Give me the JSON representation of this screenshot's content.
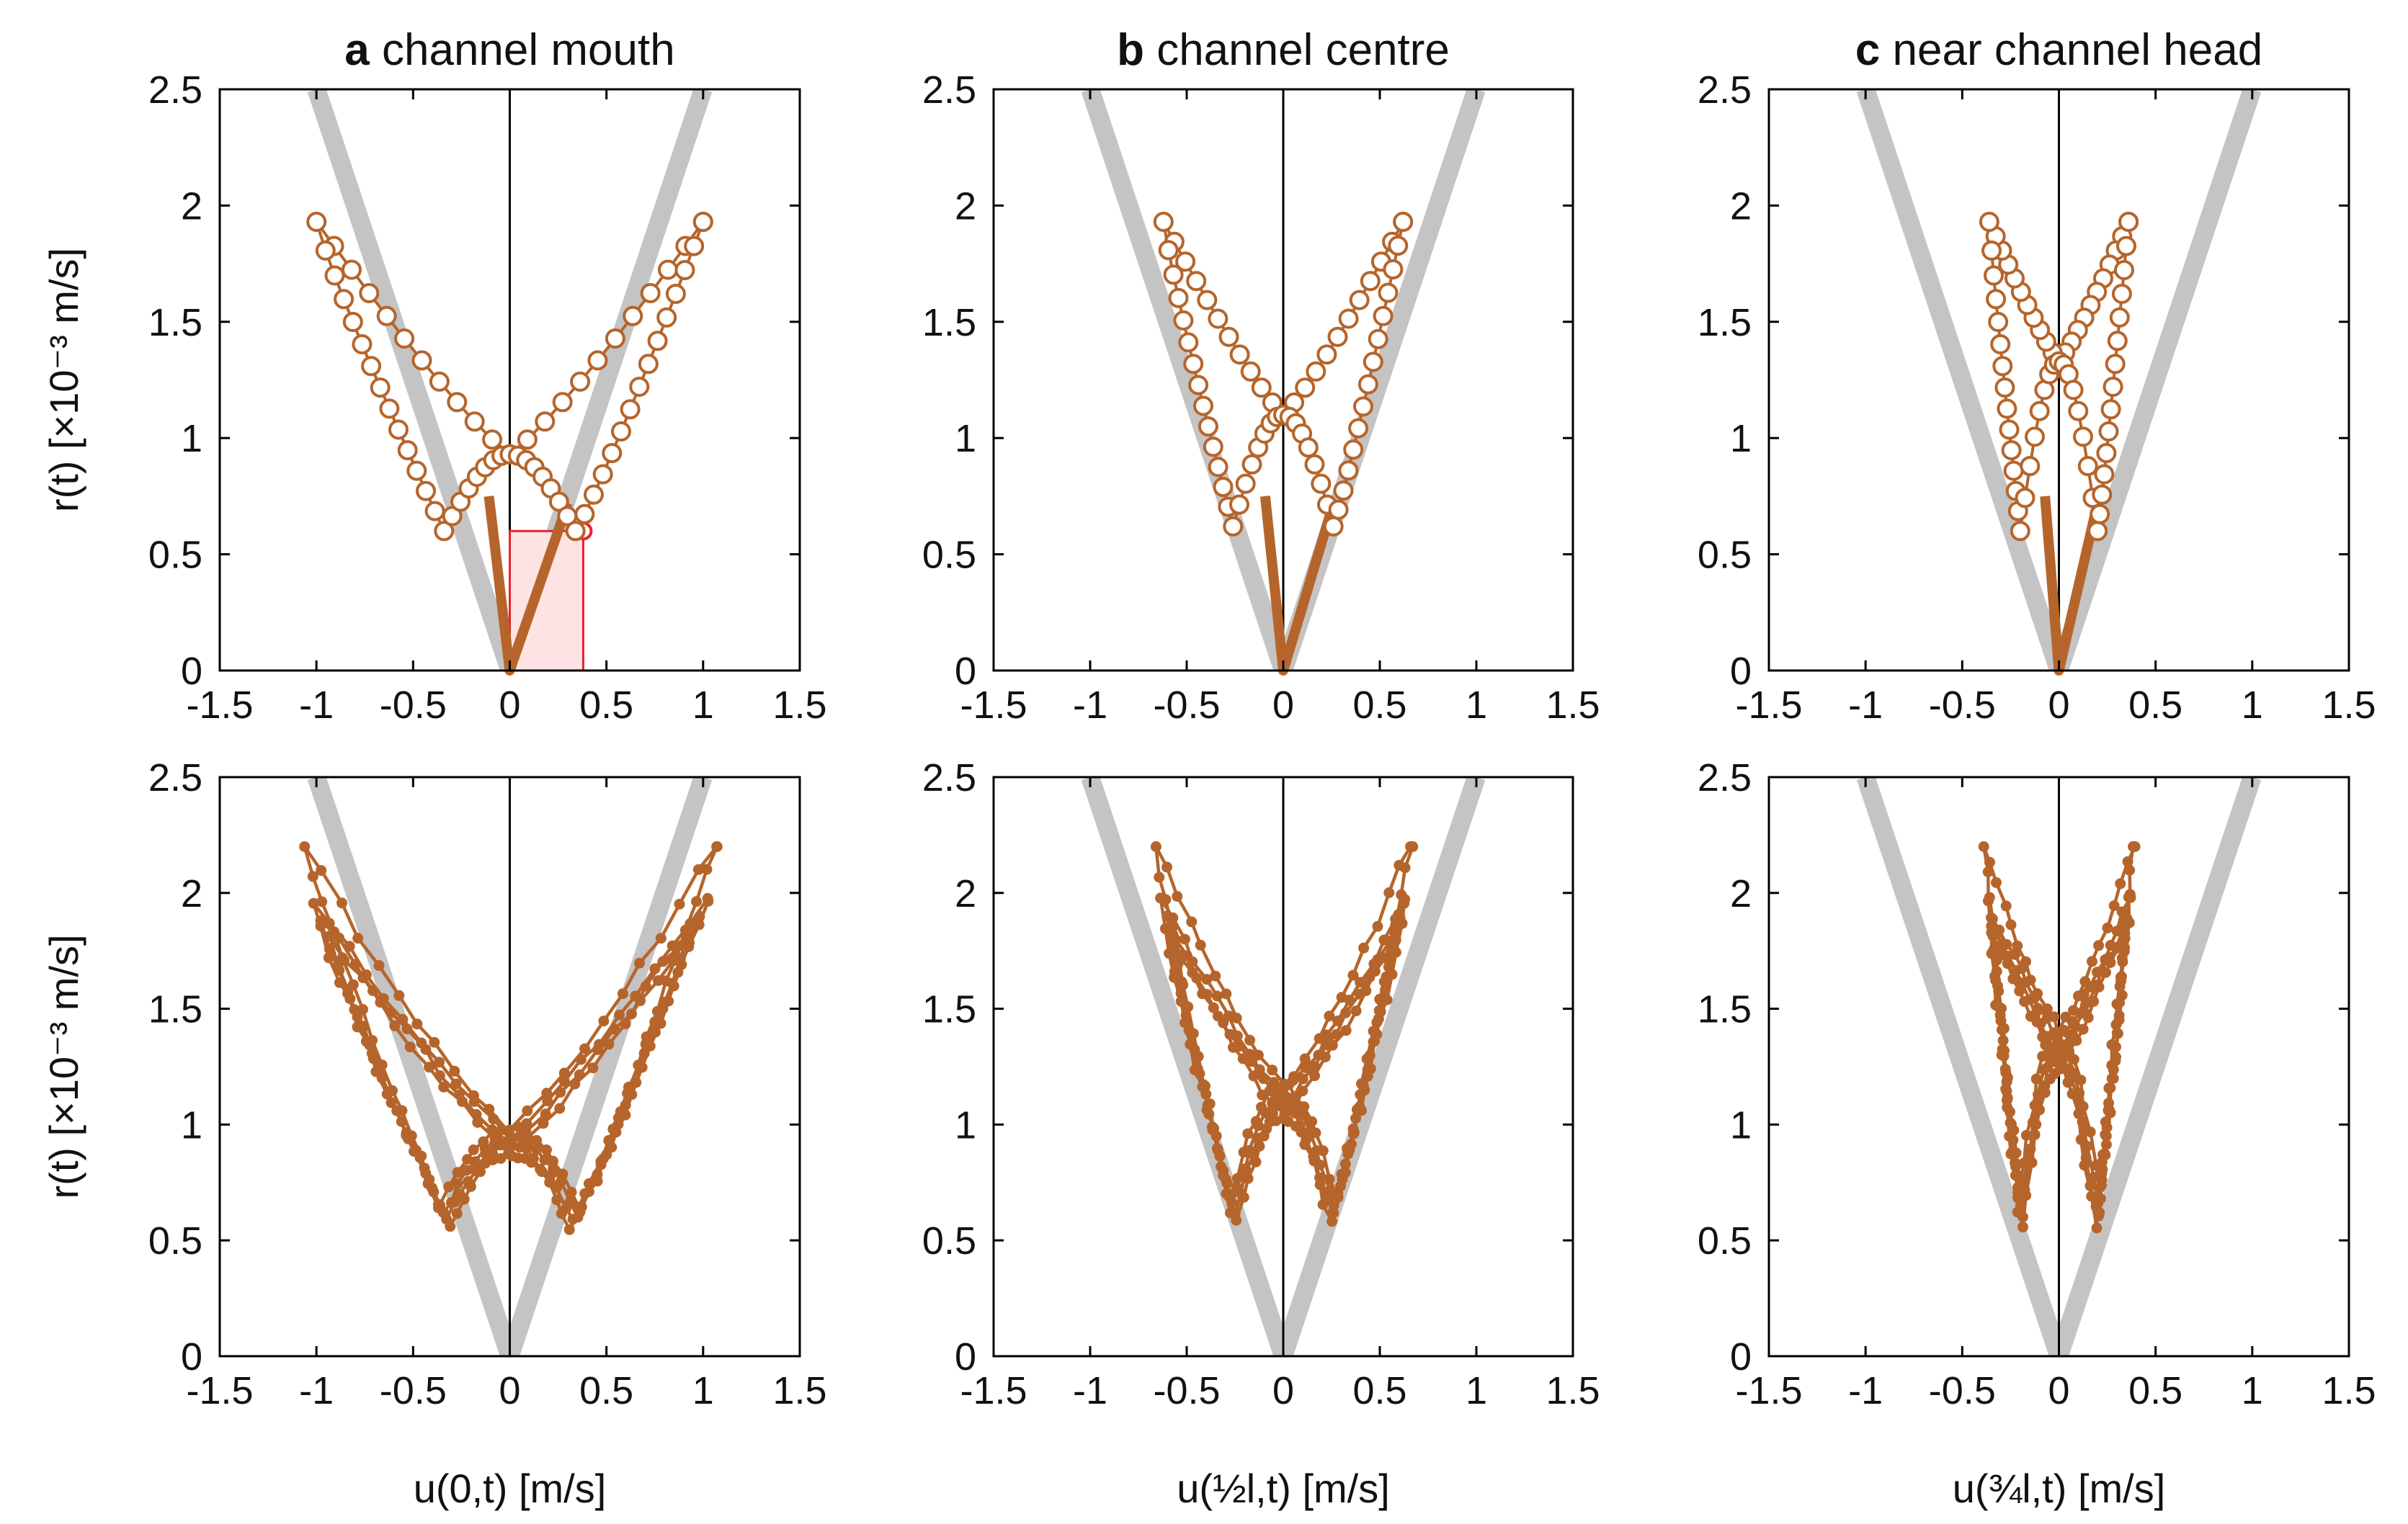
{
  "chart_data": {
    "type": "scatter",
    "colors": {
      "series": "#b5652b",
      "envelope": "#c4c4c4",
      "axis": "#000000",
      "highlight": "#e8232a",
      "highlight_fill": "#fde3e4"
    },
    "axis_labels": {
      "ylabel": "r(t) [×10⁻³ m/s]",
      "xlabels": [
        "u(0,t) [m/s]",
        "u(½l,t) [m/s]",
        "u(¾l,t) [m/s]"
      ]
    },
    "xlim": [
      -1.5,
      1.5
    ],
    "ylim": [
      0,
      2.5
    ],
    "xticks": [
      "-1.5",
      "-1",
      "-0.5",
      "0",
      "0.5",
      "1",
      "1.5"
    ],
    "yticks": [
      "0",
      "0.5",
      "1",
      "1.5",
      "2",
      "2.5"
    ],
    "envelope": {
      "description": "r = 2.5·|u|",
      "slope": 2.5
    },
    "columns": [
      {
        "letter": "a",
        "title": "channel mouth",
        "umax": 1.0,
        "umin_peak": 0.34,
        "rmin": 0.6,
        "rcross": 0.93,
        "rmax": 1.93
      },
      {
        "letter": "b",
        "title": "channel centre",
        "umax": 0.62,
        "umin_peak": 0.26,
        "rmin": 0.62,
        "rcross": 1.1,
        "rmax": 1.93
      },
      {
        "letter": "c",
        "title": "near channel head",
        "umax": 0.36,
        "umin_peak": 0.2,
        "rmin": 0.6,
        "rcross": 1.33,
        "rmax": 1.93
      }
    ],
    "highlight_point": {
      "u": 0.38,
      "r": 0.6
    },
    "bottom_row_rmax": [
      2.2,
      2.2,
      2.2
    ]
  }
}
